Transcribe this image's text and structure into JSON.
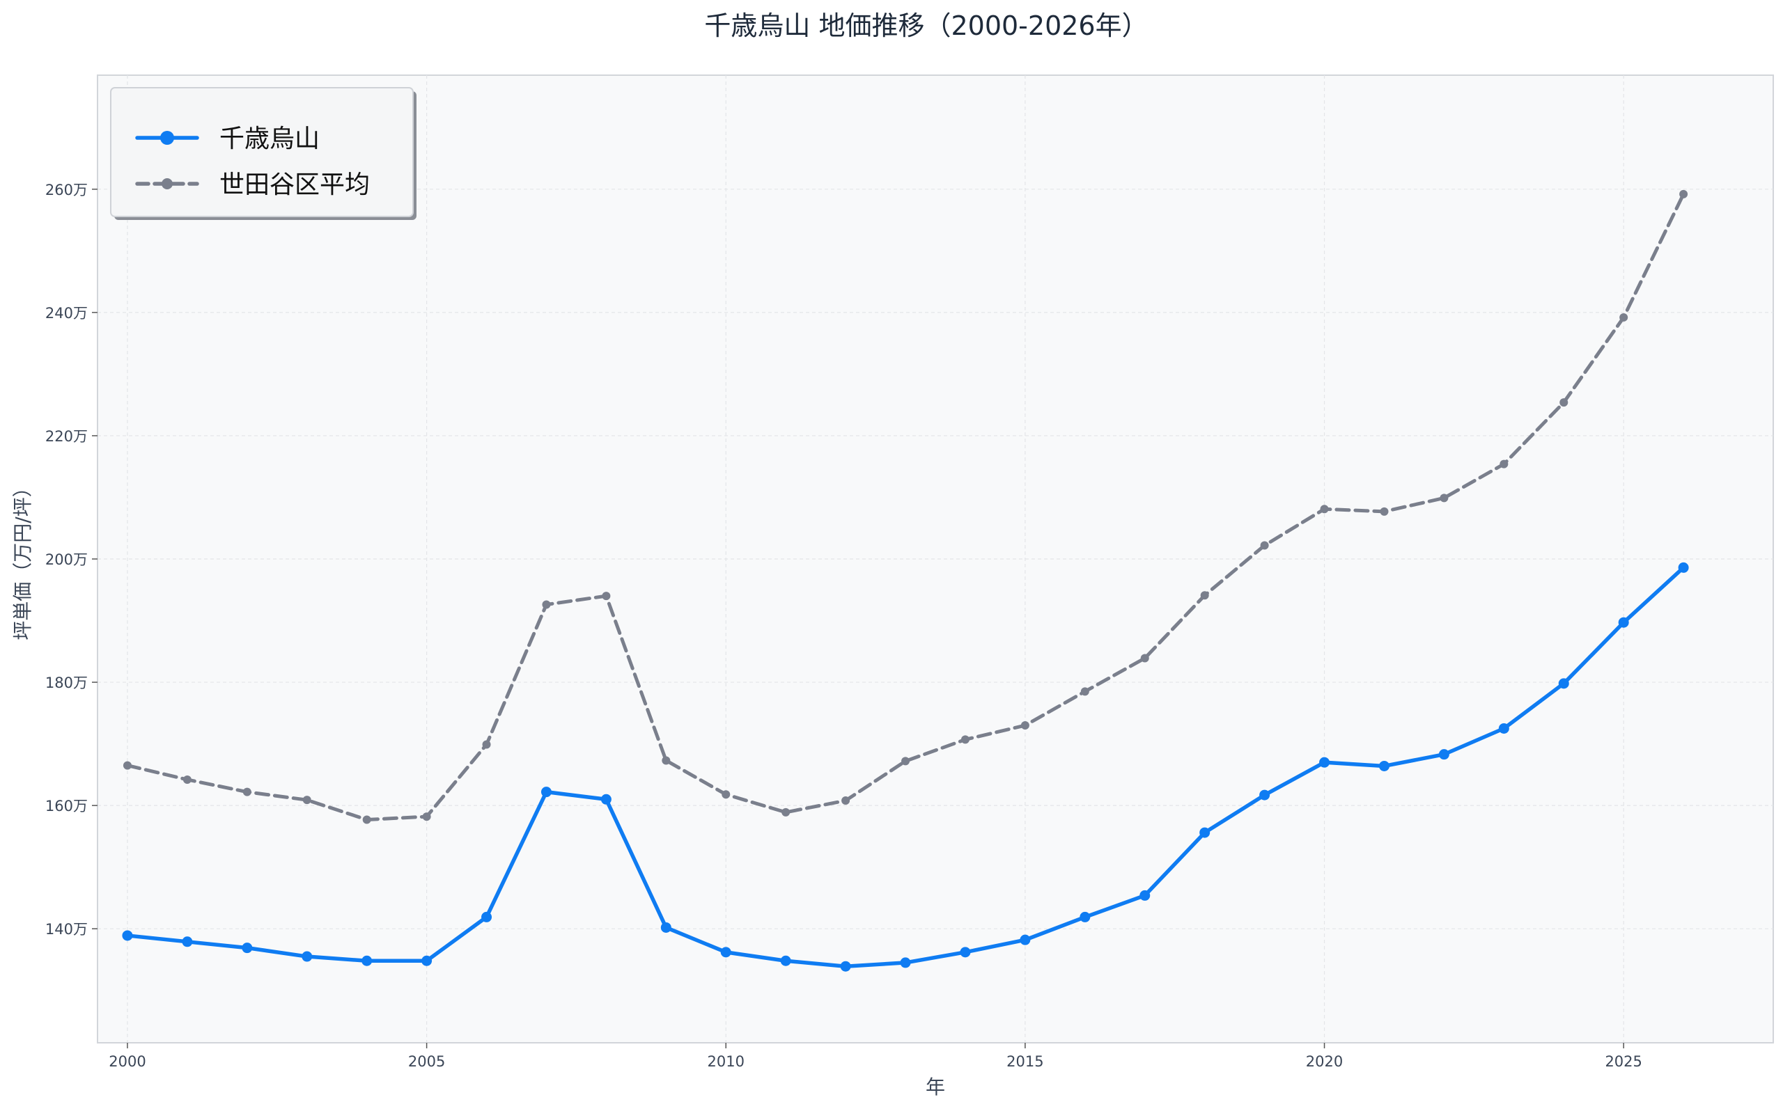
{
  "chart_data": {
    "type": "line",
    "title": "千歳烏山 地価推移（2000-2026年）",
    "xlabel": "年",
    "ylabel": "坪単価（万円/坪）",
    "x": [
      2000,
      2001,
      2002,
      2003,
      2004,
      2005,
      2006,
      2007,
      2008,
      2009,
      2010,
      2011,
      2012,
      2013,
      2014,
      2015,
      2016,
      2017,
      2018,
      2019,
      2020,
      2021,
      2022,
      2023,
      2024,
      2025,
      2026
    ],
    "series": [
      {
        "name": "千歳烏山",
        "color": "#0f7cf2",
        "line_style": "solid",
        "values": [
          138.9,
          137.9,
          136.9,
          135.5,
          134.8,
          134.8,
          141.9,
          162.2,
          161.0,
          140.2,
          136.2,
          134.8,
          133.9,
          134.5,
          136.2,
          138.2,
          141.9,
          145.4,
          155.6,
          161.7,
          167.0,
          166.4,
          168.3,
          172.5,
          179.8,
          189.7,
          198.6
        ]
      },
      {
        "name": "世田谷区平均",
        "color": "#7a7f8c",
        "line_style": "dashed",
        "values": [
          166.5,
          164.2,
          162.2,
          160.9,
          157.7,
          158.2,
          169.9,
          192.6,
          194.0,
          167.3,
          161.8,
          158.9,
          160.8,
          167.2,
          170.7,
          173.0,
          178.5,
          183.9,
          194.1,
          202.2,
          208.1,
          207.7,
          209.9,
          215.4,
          225.4,
          239.2,
          259.2
        ]
      }
    ],
    "y_ticks": [
      140,
      160,
      180,
      200,
      220,
      240,
      260
    ],
    "y_tick_labels": [
      "140万",
      "160万",
      "180万",
      "200万",
      "220万",
      "240万",
      "260万"
    ],
    "x_ticks": [
      2000,
      2005,
      2010,
      2015,
      2020,
      2025
    ],
    "x_tick_labels": [
      "2000",
      "2005",
      "2010",
      "2015",
      "2020",
      "2025"
    ],
    "xlim": [
      1999.5,
      2027.5
    ],
    "ylim": [
      121.5,
      278.5
    ],
    "grid": true,
    "legend_position": "top-left"
  }
}
